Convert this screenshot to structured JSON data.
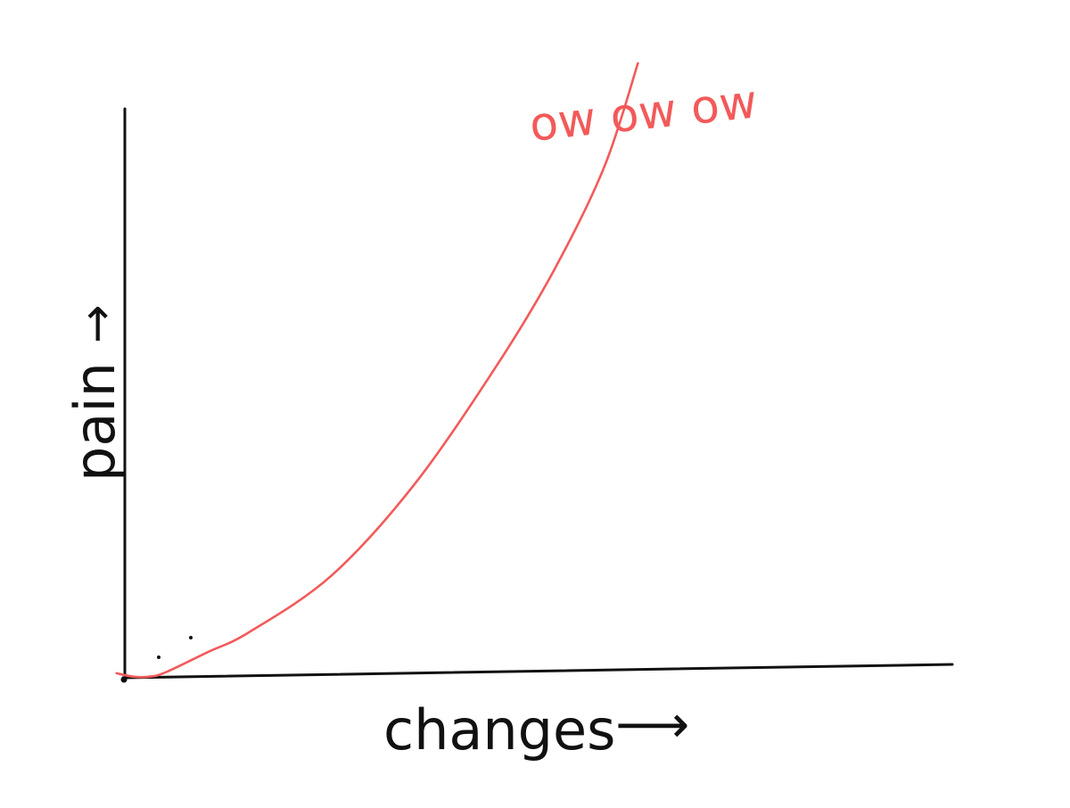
{
  "chart_data": {
    "type": "line",
    "title": "",
    "xlabel": "changes",
    "ylabel": "pain",
    "xlim": [
      0,
      100
    ],
    "ylim": [
      0,
      100
    ],
    "grid": false,
    "legend": "none",
    "x": [
      -1,
      1,
      3,
      5,
      10,
      15,
      25,
      35,
      45,
      52,
      58,
      62
    ],
    "series": [
      {
        "values": [
          0.8,
          0.2,
          0.2,
          1.0,
          4.5,
          8.0,
          18.0,
          34.0,
          55.0,
          72.0,
          90.0,
          108.0
        ],
        "color": "#f25a5a"
      }
    ],
    "annotations": [
      {
        "text": "ow ow ow",
        "color": "#f25a5a"
      }
    ]
  },
  "labels": {
    "x_arrow": "⟶",
    "y_arrow": "→"
  }
}
